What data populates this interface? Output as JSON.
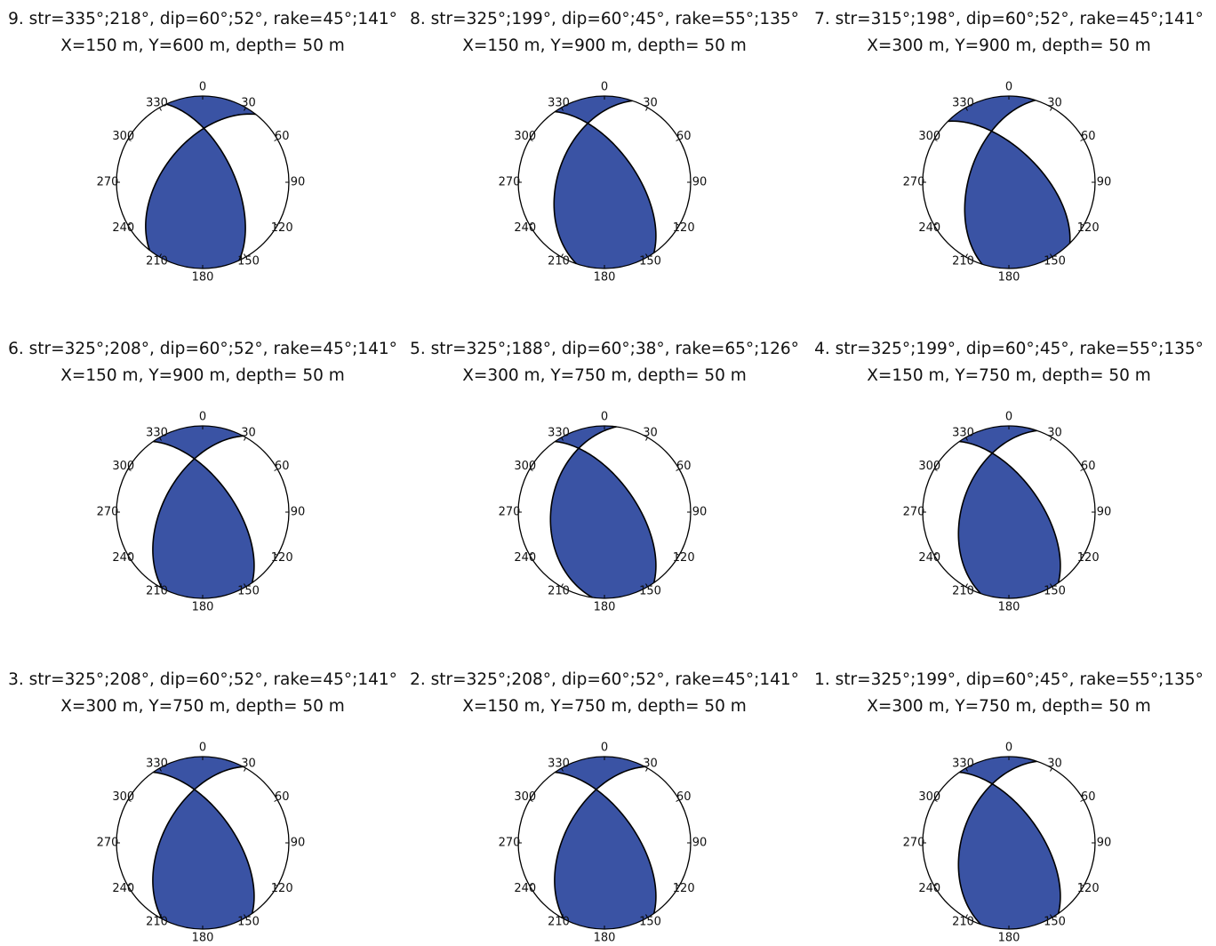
{
  "azimuth_labels": [
    0,
    30,
    60,
    90,
    120,
    150,
    180,
    210,
    240,
    270,
    300,
    330
  ],
  "panels": [
    {
      "title": "9. str=335°;218°, dip=60°;52°, rake=45°;141°",
      "location": "X=150 m, Y=600 m, depth= 50 m",
      "planes": [
        {
          "strike": 335,
          "dip": 60,
          "rake": 45
        },
        {
          "strike": 218,
          "dip": 52,
          "rake": 141
        }
      ]
    },
    {
      "title": "8. str=325°;199°, dip=60°;45°, rake=55°;135°",
      "location": "X=150 m, Y=900 m, depth= 50 m",
      "planes": [
        {
          "strike": 325,
          "dip": 60,
          "rake": 55
        },
        {
          "strike": 199,
          "dip": 45,
          "rake": 135
        }
      ]
    },
    {
      "title": "7. str=315°;198°, dip=60°;52°, rake=45°;141°",
      "location": "X=300 m, Y=900 m, depth= 50 m",
      "planes": [
        {
          "strike": 315,
          "dip": 60,
          "rake": 45
        },
        {
          "strike": 198,
          "dip": 52,
          "rake": 141
        }
      ]
    },
    {
      "title": "6. str=325°;208°, dip=60°;52°, rake=45°;141°",
      "location": "X=150 m, Y=900 m, depth= 50 m",
      "planes": [
        {
          "strike": 325,
          "dip": 60,
          "rake": 45
        },
        {
          "strike": 208,
          "dip": 52,
          "rake": 141
        }
      ]
    },
    {
      "title": "5. str=325°;188°, dip=60°;38°, rake=65°;126°",
      "location": "X=300 m, Y=750 m, depth= 50 m",
      "planes": [
        {
          "strike": 325,
          "dip": 60,
          "rake": 65
        },
        {
          "strike": 188,
          "dip": 38,
          "rake": 126
        }
      ]
    },
    {
      "title": "4. str=325°;199°, dip=60°;45°, rake=55°;135°",
      "location": "X=150 m, Y=750 m, depth= 50 m",
      "planes": [
        {
          "strike": 325,
          "dip": 60,
          "rake": 55
        },
        {
          "strike": 199,
          "dip": 45,
          "rake": 135
        }
      ]
    },
    {
      "title": "3. str=325°;208°, dip=60°;52°, rake=45°;141°",
      "location": "X=300 m, Y=750 m, depth= 50 m",
      "planes": [
        {
          "strike": 325,
          "dip": 60,
          "rake": 45
        },
        {
          "strike": 208,
          "dip": 52,
          "rake": 141
        }
      ]
    },
    {
      "title": "2. str=325°;208°, dip=60°;52°, rake=45°;141°",
      "location": "X=150 m, Y=750 m, depth= 50 m",
      "planes": [
        {
          "strike": 325,
          "dip": 60,
          "rake": 45
        },
        {
          "strike": 208,
          "dip": 52,
          "rake": 141
        }
      ]
    },
    {
      "title": "1. str=325°;199°, dip=60°;45°, rake=55°;135°",
      "location": "X=300 m, Y=750 m, depth= 50 m",
      "planes": [
        {
          "strike": 325,
          "dip": 60,
          "rake": 55
        },
        {
          "strike": 199,
          "dip": 45,
          "rake": 135
        }
      ]
    }
  ]
}
